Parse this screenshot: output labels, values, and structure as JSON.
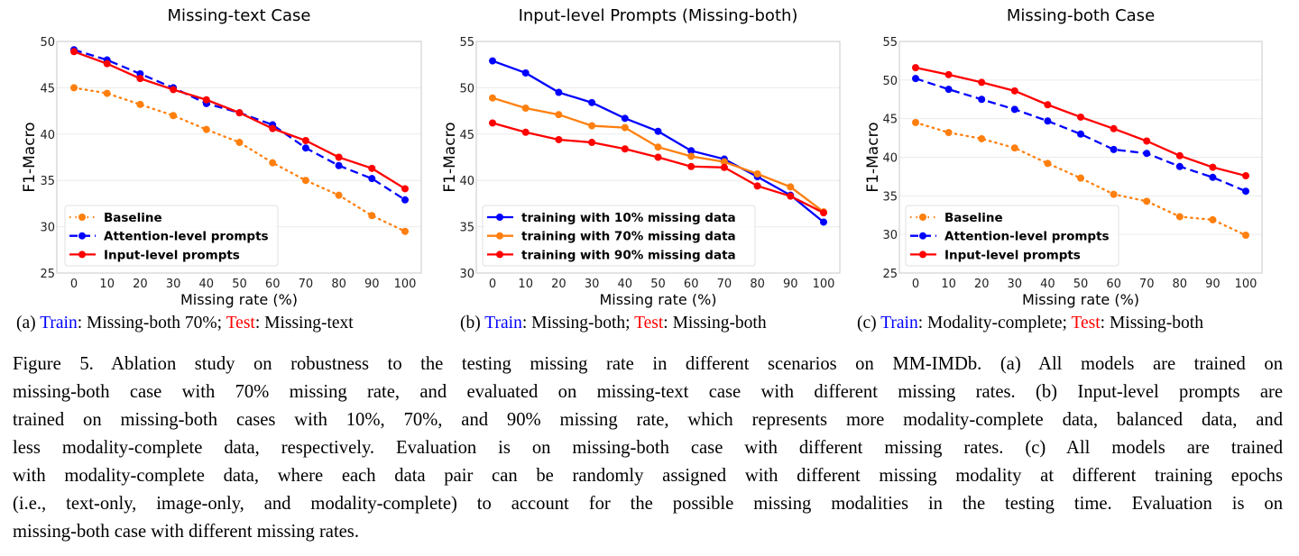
{
  "chart_data": [
    {
      "type": "line",
      "title": "Missing-text Case",
      "xlabel": "Missing rate (%)",
      "ylabel": "F1-Macro",
      "x": [
        0,
        10,
        20,
        30,
        40,
        50,
        60,
        70,
        80,
        90,
        100
      ],
      "ylim": [
        25,
        50
      ],
      "yticks": [
        25,
        30,
        35,
        40,
        45,
        50
      ],
      "grid": "horizontal",
      "legend": "bottom-left",
      "series": [
        {
          "name": "Baseline",
          "color": "#ff7f0e",
          "style": "dotted",
          "values": [
            45.0,
            44.4,
            43.2,
            42.0,
            40.5,
            39.1,
            36.9,
            35.0,
            33.4,
            31.2,
            29.5
          ]
        },
        {
          "name": "Attention-level prompts",
          "color": "#0000ff",
          "style": "dashed",
          "values": [
            49.1,
            48.0,
            46.5,
            45.0,
            43.3,
            42.3,
            41.0,
            38.5,
            36.6,
            35.2,
            32.9
          ]
        },
        {
          "name": "Input-level prompts",
          "color": "#ff0000",
          "style": "solid",
          "values": [
            48.9,
            47.6,
            46.0,
            44.8,
            43.7,
            42.3,
            40.6,
            39.3,
            37.5,
            36.3,
            34.1
          ]
        }
      ]
    },
    {
      "type": "line",
      "title": "Input-level Prompts (Missing-both)",
      "xlabel": "Missing rate (%)",
      "ylabel": "F1-Macro",
      "x": [
        0,
        10,
        20,
        30,
        40,
        50,
        60,
        70,
        80,
        90,
        100
      ],
      "ylim": [
        30,
        55
      ],
      "yticks": [
        30,
        35,
        40,
        45,
        50,
        55
      ],
      "grid": "horizontal",
      "legend": "bottom-left",
      "series": [
        {
          "name": "training with 10% missing data",
          "color": "#0000ff",
          "style": "solid",
          "values": [
            52.9,
            51.6,
            49.5,
            48.4,
            46.7,
            45.3,
            43.2,
            42.3,
            40.4,
            38.4,
            35.5
          ]
        },
        {
          "name": "training with 70% missing data",
          "color": "#ff7f0e",
          "style": "solid",
          "values": [
            48.9,
            47.8,
            47.1,
            45.9,
            45.7,
            43.6,
            42.6,
            42.0,
            40.7,
            39.3,
            36.6
          ]
        },
        {
          "name": "training with 90% missing data",
          "color": "#ff0000",
          "style": "solid",
          "values": [
            46.2,
            45.2,
            44.4,
            44.1,
            43.4,
            42.5,
            41.5,
            41.4,
            39.4,
            38.3,
            36.5
          ]
        }
      ]
    },
    {
      "type": "line",
      "title": "Missing-both Case",
      "xlabel": "Missing rate (%)",
      "ylabel": "F1-Macro",
      "x": [
        0,
        10,
        20,
        30,
        40,
        50,
        60,
        70,
        80,
        90,
        100
      ],
      "ylim": [
        25,
        55
      ],
      "yticks": [
        25,
        30,
        35,
        40,
        45,
        50,
        55
      ],
      "grid": "horizontal",
      "legend": "bottom-left",
      "series": [
        {
          "name": "Baseline",
          "color": "#ff7f0e",
          "style": "dotted",
          "values": [
            44.5,
            43.2,
            42.4,
            41.2,
            39.2,
            37.3,
            35.2,
            34.3,
            32.3,
            31.9,
            29.9
          ]
        },
        {
          "name": "Attention-level prompts",
          "color": "#0000ff",
          "style": "dashed",
          "values": [
            50.2,
            48.8,
            47.5,
            46.2,
            44.7,
            43.0,
            41.0,
            40.5,
            38.8,
            37.4,
            35.6
          ]
        },
        {
          "name": "Input-level prompts",
          "color": "#ff0000",
          "style": "solid",
          "values": [
            51.6,
            50.7,
            49.7,
            48.6,
            46.8,
            45.2,
            43.7,
            42.1,
            40.2,
            38.7,
            37.6
          ]
        }
      ]
    }
  ],
  "subcaptions": [
    {
      "label": "(a)",
      "train": "Train",
      "train_value": ": Missing-both 70%; ",
      "test": "Test",
      "test_value": ": Missing-text"
    },
    {
      "label": "(b)",
      "train": "Train",
      "train_value": ": Missing-both; ",
      "test": "Test",
      "test_value": ": Missing-both"
    },
    {
      "label": "(c)",
      "train": "Train",
      "train_value": ": Modality-complete; ",
      "test": "Test",
      "test_value": ": Missing-both"
    }
  ],
  "caption": {
    "lines": [
      "Figure 5.  Ablation study on robustness to the testing missing rate in different scenarios on MM-IMDb.  (a) All models are trained on",
      "missing-both case with 70% missing rate, and evaluated on missing-text case with different missing rates.  (b) Input-level prompts are",
      "trained on missing-both cases with 10%, 70%, and 90% missing rate, which represents more modality-complete data, balanced data, and",
      "less modality-complete data, respectively.  Evaluation is on missing-both case with different missing rates.  (c) All models are trained",
      "with modality-complete data, where each data pair can be randomly assigned with different missing modality at different training epochs",
      "(i.e., text-only, image-only, and modality-complete) to account for the possible missing modalities in the testing time.  Evaluation is on",
      "missing-both case with different missing rates."
    ]
  }
}
